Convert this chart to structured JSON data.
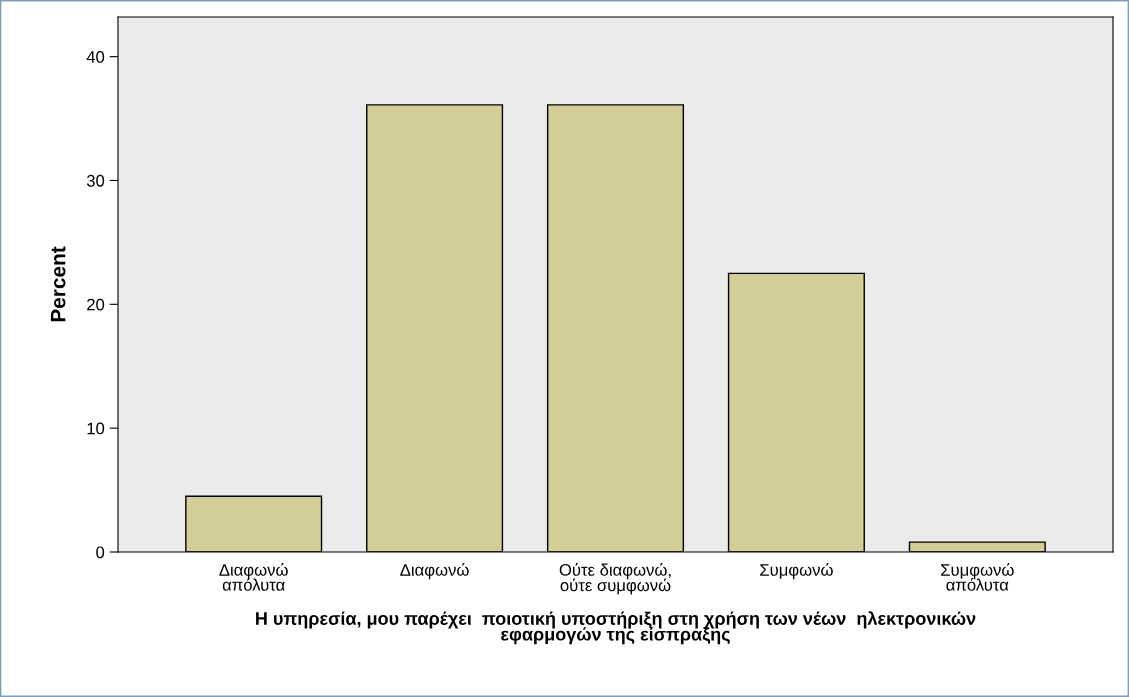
{
  "chart_data": {
    "type": "bar",
    "xlabel": "Η υπηρεσία, μου παρέχει  ποιοτική υποστήριξη στη χρήση των νέων  ηλεκτρονικών\nεφαρμογών της είσπραξης",
    "ylabel": "Percent",
    "categories": [
      "Διαφωνώ\nαπόλυτα",
      "Διαφωνώ",
      "Ούτε διαφωνώ,\nούτε συμφωνώ",
      "Συμφωνώ",
      "Συμφωνώ\nαπόλυτα"
    ],
    "values": [
      4.5,
      36.1,
      36.1,
      22.5,
      0.8
    ],
    "color": "#d3ce98",
    "ylim": [
      0,
      43.2
    ],
    "yticks": [
      0,
      10,
      20,
      30,
      40
    ],
    "grid": false
  }
}
